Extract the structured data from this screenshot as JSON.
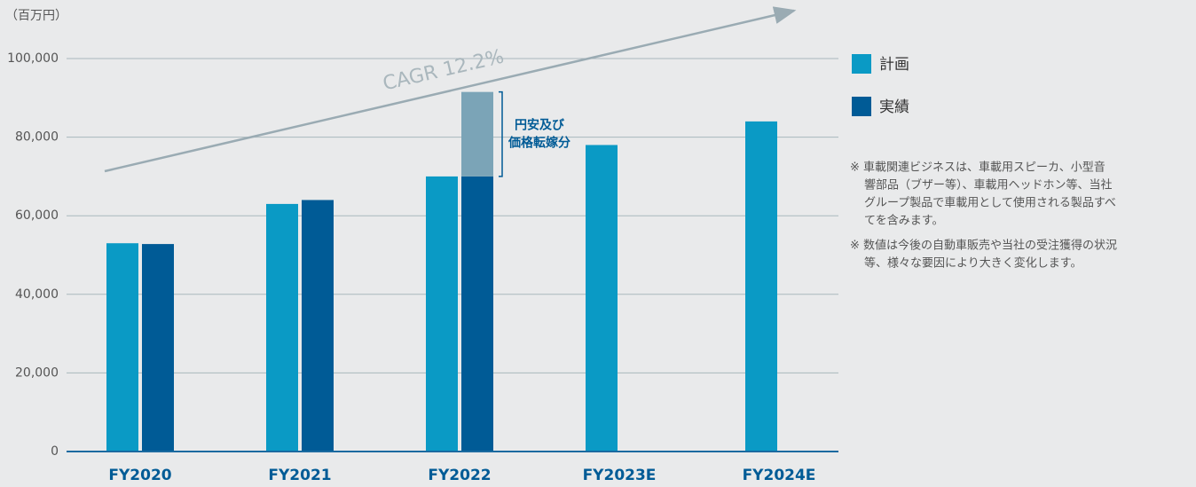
{
  "chart_data": {
    "type": "bar",
    "unit_label": "（百万円）",
    "categories": [
      "FY2020",
      "FY2021",
      "FY2022",
      "FY2023E",
      "FY2024E"
    ],
    "series": [
      {
        "name": "計画",
        "color": "#0a9ac5",
        "values": [
          53000,
          63000,
          70000,
          78000,
          84000
        ]
      },
      {
        "name": "実績",
        "color": "#005b96",
        "values": [
          52800,
          64000,
          70000,
          null,
          null
        ]
      }
    ],
    "segment": {
      "text_lines": [
        "円安及び",
        "価格転嫁分"
      ],
      "color": "#7ba4b7",
      "values": [
        null,
        null,
        21500,
        null,
        null
      ]
    },
    "trend_label": "CAGR 12.2%",
    "ylim": [
      0,
      100000
    ],
    "yticks": [
      0,
      {
        "value": 20000,
        "label": "20,000"
      },
      {
        "value": 40000,
        "label": "40,000"
      },
      {
        "value": 60000,
        "label": "60,000"
      },
      {
        "value": 80000,
        "label": "80,000"
      },
      {
        "value": 100000,
        "label": "100,000"
      }
    ],
    "grid": true,
    "notes": [
      [
        "※ 車載関連ビジネスは、車載用スピーカ、小型音",
        "響部品（ブザー等）、車載用ヘッドホン等、当社",
        "グループ製品で車載用として使用される製品すべ",
        "てを含みます。"
      ],
      [
        "※ 数値は今後の自動車販売や当社の受注獲得の状況",
        "等、様々な要因により大きく変化します。"
      ]
    ]
  }
}
